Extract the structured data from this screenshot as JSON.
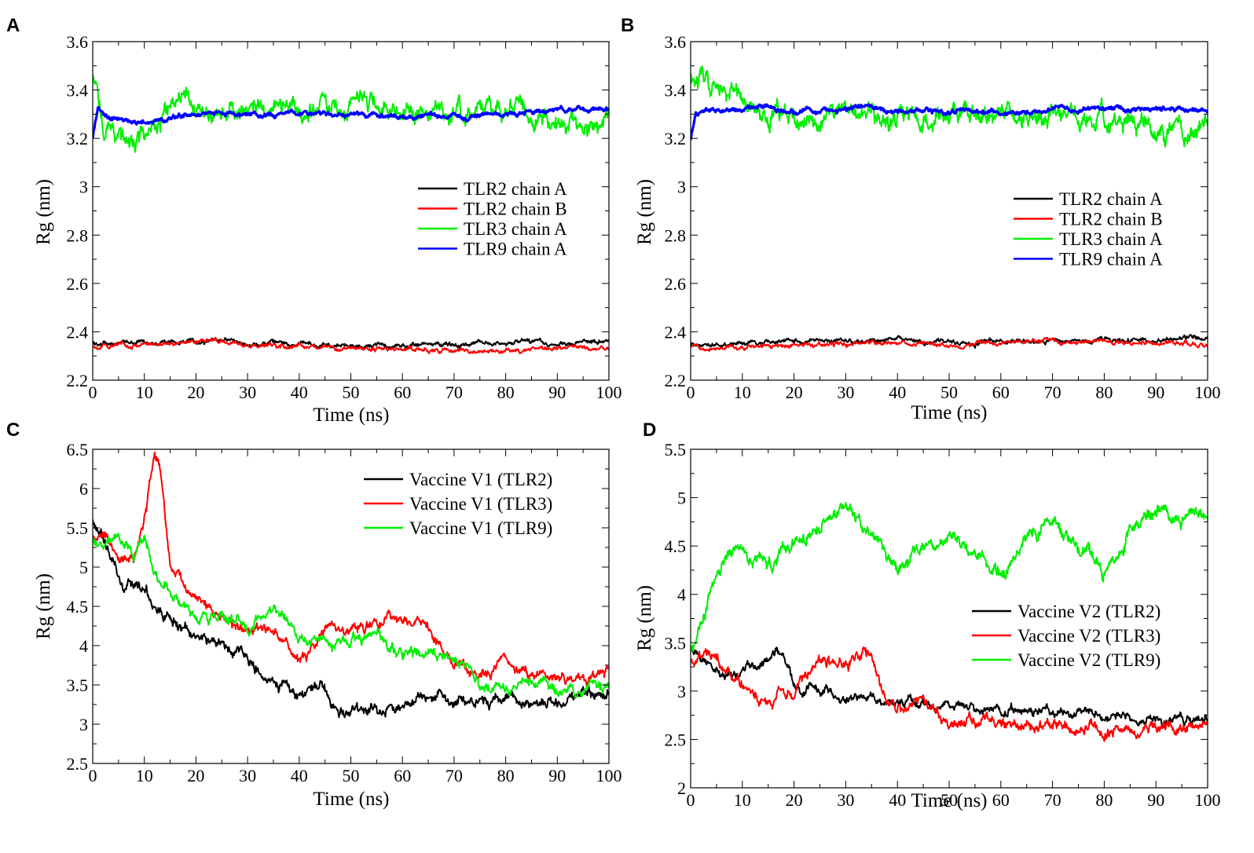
{
  "colors": {
    "black": "#000000",
    "red": "#ff0000",
    "green": "#00ee00",
    "blue": "#0000ff"
  },
  "chart_data": [
    {
      "type": "line",
      "panel": "A",
      "xlabel": "Time (ns)",
      "ylabel": "Rg (nm)",
      "xlim": [
        0,
        100
      ],
      "ylim": [
        2.2,
        3.6
      ],
      "xticks": [
        "0",
        "10",
        "20",
        "30",
        "40",
        "50",
        "60",
        "70",
        "80",
        "90",
        "100"
      ],
      "yticks": [
        "2.2",
        "2.4",
        "2.6",
        "2.8",
        "3",
        "3.2",
        "3.4",
        "3.6"
      ],
      "legend_position": "center-right",
      "series": [
        {
          "name": "TLR2 chain A",
          "color": "#000000",
          "noise": 0.008,
          "x": [
            0,
            10,
            20,
            25,
            30,
            40,
            50,
            60,
            70,
            80,
            90,
            100
          ],
          "y": [
            2.35,
            2.36,
            2.36,
            2.37,
            2.35,
            2.35,
            2.34,
            2.34,
            2.35,
            2.36,
            2.35,
            2.36
          ]
        },
        {
          "name": "TLR2 chain B",
          "color": "#ff0000",
          "noise": 0.008,
          "x": [
            0,
            10,
            20,
            25,
            30,
            40,
            50,
            60,
            70,
            80,
            90,
            100
          ],
          "y": [
            2.34,
            2.35,
            2.36,
            2.37,
            2.34,
            2.34,
            2.33,
            2.33,
            2.32,
            2.32,
            2.33,
            2.33
          ]
        },
        {
          "name": "TLR3 chain A",
          "color": "#00ee00",
          "noise": 0.035,
          "x": [
            0,
            2,
            5,
            8,
            12,
            18,
            22,
            30,
            40,
            50,
            55,
            60,
            70,
            80,
            90,
            100
          ],
          "y": [
            3.45,
            3.27,
            3.22,
            3.17,
            3.24,
            3.35,
            3.31,
            3.34,
            3.32,
            3.34,
            3.36,
            3.3,
            3.31,
            3.33,
            3.27,
            3.25
          ]
        },
        {
          "name": "TLR9 chain A",
          "color": "#0000ff",
          "noise": 0.008,
          "x": [
            0,
            1,
            3,
            10,
            20,
            30,
            40,
            50,
            60,
            70,
            80,
            90,
            100
          ],
          "y": [
            3.2,
            3.33,
            3.28,
            3.27,
            3.3,
            3.3,
            3.3,
            3.3,
            3.29,
            3.29,
            3.3,
            3.32,
            3.32
          ]
        }
      ]
    },
    {
      "type": "line",
      "panel": "B",
      "xlabel": "Time (ns)",
      "ylabel": "Rg (nm)",
      "xlim": [
        0,
        100
      ],
      "ylim": [
        2.2,
        3.6
      ],
      "xticks": [
        "0",
        "10",
        "20",
        "30",
        "40",
        "50",
        "60",
        "70",
        "80",
        "90",
        "100"
      ],
      "yticks": [
        "2.2",
        "2.4",
        "2.6",
        "2.8",
        "3",
        "3.2",
        "3.4",
        "3.6"
      ],
      "legend_position": "center-right",
      "series": [
        {
          "name": "TLR2 chain A",
          "color": "#000000",
          "noise": 0.008,
          "x": [
            0,
            10,
            20,
            30,
            40,
            50,
            60,
            70,
            80,
            90,
            100
          ],
          "y": [
            2.35,
            2.35,
            2.36,
            2.36,
            2.37,
            2.35,
            2.36,
            2.36,
            2.36,
            2.37,
            2.37
          ]
        },
        {
          "name": "TLR2 chain B",
          "color": "#ff0000",
          "noise": 0.008,
          "x": [
            0,
            10,
            20,
            30,
            40,
            50,
            60,
            70,
            80,
            90,
            100
          ],
          "y": [
            2.34,
            2.34,
            2.34,
            2.35,
            2.35,
            2.35,
            2.35,
            2.36,
            2.36,
            2.35,
            2.35
          ]
        },
        {
          "name": "TLR3 chain A",
          "color": "#00ee00",
          "noise": 0.035,
          "x": [
            0,
            2,
            5,
            10,
            15,
            20,
            30,
            40,
            50,
            60,
            70,
            80,
            90,
            100
          ],
          "y": [
            3.48,
            3.46,
            3.4,
            3.34,
            3.3,
            3.28,
            3.28,
            3.3,
            3.29,
            3.3,
            3.29,
            3.3,
            3.24,
            3.22
          ]
        },
        {
          "name": "TLR9 chain A",
          "color": "#0000ff",
          "noise": 0.008,
          "x": [
            0,
            1,
            3,
            10,
            15,
            20,
            30,
            35,
            40,
            50,
            60,
            70,
            80,
            90,
            100
          ],
          "y": [
            3.2,
            3.3,
            3.32,
            3.31,
            3.33,
            3.31,
            3.32,
            3.33,
            3.31,
            3.31,
            3.31,
            3.31,
            3.32,
            3.32,
            3.32
          ]
        }
      ]
    },
    {
      "type": "line",
      "panel": "C",
      "xlabel": "Time (ns)",
      "ylabel": "Rg (nm)",
      "xlim": [
        0,
        100
      ],
      "ylim": [
        2.5,
        6.5
      ],
      "xticks": [
        "0",
        "10",
        "20",
        "30",
        "40",
        "50",
        "60",
        "70",
        "80",
        "90",
        "100"
      ],
      "yticks": [
        "2.5",
        "3",
        "3.5",
        "4",
        "4.5",
        "5",
        "5.5",
        "6",
        "6.5"
      ],
      "legend_position": "top-right",
      "series": [
        {
          "name": "Vaccine V1 (TLR2)",
          "color": "#000000",
          "noise": 0.06,
          "x": [
            0,
            3,
            6,
            9,
            10,
            14,
            20,
            25,
            30,
            33,
            36,
            40,
            44,
            47,
            50,
            55,
            60,
            67,
            70,
            80,
            90,
            100
          ],
          "y": [
            5.6,
            5.2,
            4.7,
            4.8,
            4.7,
            4.4,
            4.1,
            4.0,
            3.9,
            3.6,
            3.5,
            3.35,
            3.55,
            3.2,
            3.1,
            3.2,
            3.25,
            3.45,
            3.3,
            3.25,
            3.3,
            3.4
          ]
        },
        {
          "name": "Vaccine V1 (TLR3)",
          "color": "#ff0000",
          "noise": 0.06,
          "x": [
            0,
            5,
            8,
            10,
            12,
            13,
            15,
            20,
            25,
            30,
            35,
            40,
            45,
            50,
            55,
            60,
            65,
            70,
            75,
            80,
            85,
            90,
            100
          ],
          "y": [
            5.4,
            5.2,
            5.1,
            5.6,
            6.35,
            6.2,
            5.0,
            4.6,
            4.3,
            4.2,
            4.2,
            3.8,
            4.2,
            4.2,
            4.3,
            4.35,
            4.2,
            3.8,
            3.6,
            3.8,
            3.6,
            3.6,
            3.6
          ]
        },
        {
          "name": "Vaccine V1 (TLR9)",
          "color": "#00ee00",
          "noise": 0.06,
          "x": [
            0,
            5,
            8,
            10,
            12,
            15,
            20,
            25,
            30,
            35,
            40,
            45,
            50,
            55,
            60,
            65,
            70,
            75,
            80,
            85,
            90,
            100
          ],
          "y": [
            5.3,
            5.4,
            5.2,
            5.4,
            4.9,
            4.7,
            4.4,
            4.4,
            4.3,
            4.5,
            4.1,
            4.0,
            4.1,
            4.2,
            3.9,
            3.9,
            3.8,
            3.6,
            3.4,
            3.5,
            3.4,
            3.5
          ]
        }
      ]
    },
    {
      "type": "line",
      "panel": "D",
      "xlabel": "Time (ns)",
      "ylabel": "Rg (nm)",
      "xlim": [
        0,
        100
      ],
      "ylim": [
        2,
        5.5
      ],
      "xticks": [
        "0",
        "10",
        "20",
        "30",
        "40",
        "50",
        "60",
        "70",
        "80",
        "90",
        "100"
      ],
      "yticks": [
        "2",
        "2.5",
        "3",
        "3.5",
        "4",
        "4.5",
        "5",
        "5.5"
      ],
      "legend_position": "center-right",
      "series": [
        {
          "name": "Vaccine V2 (TLR2)",
          "color": "#000000",
          "noise": 0.04,
          "x": [
            0,
            3,
            6,
            10,
            14,
            16,
            18,
            20,
            30,
            40,
            50,
            60,
            70,
            80,
            90,
            100
          ],
          "y": [
            3.4,
            3.3,
            3.1,
            3.2,
            3.3,
            3.45,
            3.4,
            3.05,
            2.95,
            2.9,
            2.85,
            2.8,
            2.8,
            2.75,
            2.7,
            2.7
          ]
        },
        {
          "name": "Vaccine V2 (TLR3)",
          "color": "#ff0000",
          "noise": 0.05,
          "x": [
            0,
            3,
            6,
            10,
            14,
            20,
            25,
            30,
            35,
            37,
            40,
            45,
            50,
            60,
            70,
            80,
            90,
            100
          ],
          "y": [
            3.3,
            3.4,
            3.2,
            3.1,
            2.9,
            3.0,
            3.35,
            3.3,
            3.4,
            3.0,
            2.8,
            2.9,
            2.7,
            2.65,
            2.6,
            2.58,
            2.6,
            2.6
          ]
        },
        {
          "name": "Vaccine V2 (TLR9)",
          "color": "#00ee00",
          "noise": 0.06,
          "x": [
            0,
            2,
            4,
            6,
            10,
            15,
            20,
            25,
            30,
            35,
            40,
            45,
            50,
            55,
            60,
            65,
            70,
            75,
            80,
            85,
            90,
            95,
            100
          ],
          "y": [
            3.4,
            3.6,
            4.0,
            4.3,
            4.5,
            4.3,
            4.6,
            4.7,
            4.95,
            4.6,
            4.3,
            4.45,
            4.55,
            4.4,
            4.2,
            4.6,
            4.75,
            4.5,
            4.25,
            4.6,
            4.85,
            4.8,
            4.8
          ]
        }
      ]
    }
  ]
}
